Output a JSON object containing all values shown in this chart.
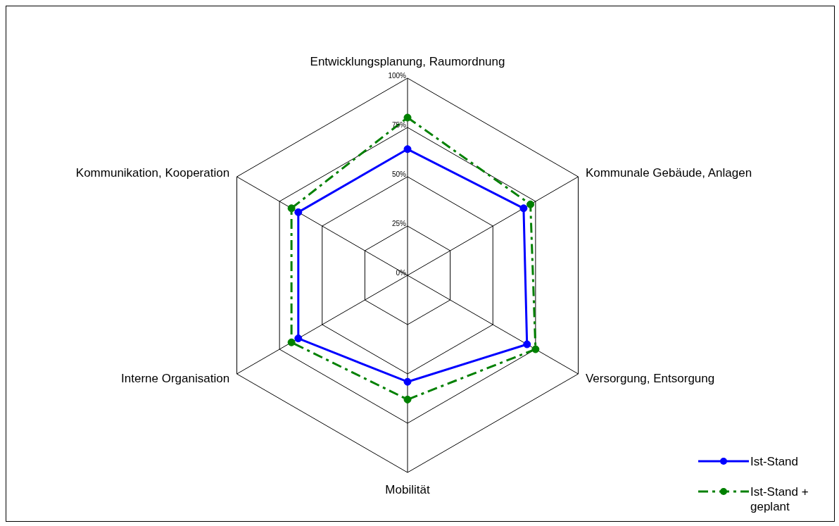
{
  "chart_data": {
    "type": "radar",
    "categories": [
      "Entwicklungsplanung, Raumordnung",
      "Kommunale Gebäude, Anlagen",
      "Versorgung, Entsorgung",
      "Mobilität",
      "Interne Organisation",
      "Kommunikation, Kooperation"
    ],
    "series": [
      {
        "name": "Ist-Stand",
        "color": "#0000ff",
        "values": [
          64,
          68,
          70,
          54,
          64,
          64
        ],
        "line_style": "solid"
      },
      {
        "name": "Ist-Stand + geplant",
        "color": "#008000",
        "values": [
          80,
          72,
          75,
          63,
          68,
          68
        ],
        "line_style": "dashed"
      }
    ],
    "ylim": [
      0,
      100
    ],
    "yticks": [
      {
        "value": 0,
        "label": "0%"
      },
      {
        "value": 25,
        "label": "25%"
      },
      {
        "value": 50,
        "label": "50%"
      },
      {
        "value": 75,
        "label": "75%"
      },
      {
        "value": 100,
        "label": "100%"
      }
    ],
    "grid": true,
    "legend": "bottom right",
    "marker": "circle"
  }
}
